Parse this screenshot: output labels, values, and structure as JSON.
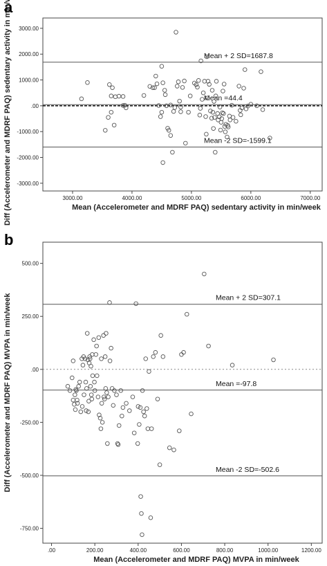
{
  "chart_data": [
    {
      "panel_label": "a",
      "type": "scatter",
      "xlabel": "Mean (Accelerometer and MDRF PAQ) sedentary activity in min/week",
      "ylabel": "Diff (Accelerometer and MDRF PAQ) sedentary activity in min/week",
      "xlim": [
        2500,
        7200
      ],
      "ylim": [
        -3300,
        3400
      ],
      "x_ticks": [
        3000,
        4000,
        5000,
        6000,
        7000
      ],
      "x_tick_labels": [
        "3000.00",
        "4000.00",
        "5000.00",
        "6000.00",
        "7000.00"
      ],
      "y_ticks": [
        3000,
        2000,
        1000,
        0,
        -1000,
        -2000,
        -3000
      ],
      "y_tick_labels": [
        "3000.00",
        "2000.00",
        "1000.00",
        ".00",
        "-1000.00",
        "-2000.00",
        "-3000.00"
      ],
      "grid": false,
      "reference_lines": [
        {
          "label": "Mean + 2 SD=1687.8",
          "value": 1687.8,
          "style": "solid"
        },
        {
          "label": "Mean =44.4",
          "value": 44.4,
          "style": "solid"
        },
        {
          "label": "",
          "value": 0,
          "style": "dashed"
        },
        {
          "label": "Mean -2 SD=-1599.1",
          "value": -1599.1,
          "style": "solid"
        }
      ],
      "points": [
        [
          3150,
          270
        ],
        [
          3250,
          900
        ],
        [
          3550,
          -950
        ],
        [
          3600,
          -450
        ],
        [
          3620,
          820
        ],
        [
          3650,
          -250
        ],
        [
          3650,
          380
        ],
        [
          3670,
          700
        ],
        [
          3700,
          -750
        ],
        [
          3720,
          350
        ],
        [
          3780,
          370
        ],
        [
          3850,
          360
        ],
        [
          3850,
          10
        ],
        [
          3880,
          20
        ],
        [
          3900,
          -80
        ],
        [
          4200,
          400
        ],
        [
          4300,
          750
        ],
        [
          4350,
          700
        ],
        [
          4380,
          700
        ],
        [
          4400,
          1150
        ],
        [
          4420,
          850
        ],
        [
          4450,
          10
        ],
        [
          4500,
          -250
        ],
        [
          4480,
          -420
        ],
        [
          4500,
          1530
        ],
        [
          4520,
          890
        ],
        [
          4520,
          -2200
        ],
        [
          4550,
          600
        ],
        [
          4560,
          430
        ],
        [
          4580,
          0
        ],
        [
          4600,
          -870
        ],
        [
          4620,
          -950
        ],
        [
          4650,
          30
        ],
        [
          4650,
          -1150
        ],
        [
          4680,
          -1800
        ],
        [
          4700,
          -220
        ],
        [
          4720,
          -70
        ],
        [
          4740,
          2850
        ],
        [
          4760,
          760
        ],
        [
          4780,
          930
        ],
        [
          4800,
          180
        ],
        [
          4820,
          -50
        ],
        [
          4820,
          -230
        ],
        [
          4850,
          710
        ],
        [
          4880,
          960
        ],
        [
          4900,
          -1450
        ],
        [
          4950,
          -250
        ],
        [
          4980,
          380
        ],
        [
          5050,
          880
        ],
        [
          5080,
          820
        ],
        [
          5100,
          720
        ],
        [
          5120,
          980
        ],
        [
          5140,
          -360
        ],
        [
          5150,
          -100
        ],
        [
          5160,
          1740
        ],
        [
          5180,
          250
        ],
        [
          5200,
          500
        ],
        [
          5220,
          950
        ],
        [
          5240,
          -420
        ],
        [
          5250,
          -1100
        ],
        [
          5260,
          1900
        ],
        [
          5270,
          300
        ],
        [
          5280,
          950
        ],
        [
          5300,
          830
        ],
        [
          5320,
          -200
        ],
        [
          5340,
          -480
        ],
        [
          5350,
          600
        ],
        [
          5360,
          -250
        ],
        [
          5370,
          -880
        ],
        [
          5380,
          170
        ],
        [
          5390,
          -450
        ],
        [
          5400,
          -1800
        ],
        [
          5410,
          380
        ],
        [
          5420,
          950
        ],
        [
          5440,
          -300
        ],
        [
          5450,
          -550
        ],
        [
          5470,
          -430
        ],
        [
          5480,
          -50
        ],
        [
          5490,
          -940
        ],
        [
          5500,
          -640
        ],
        [
          5510,
          -500
        ],
        [
          5520,
          -270
        ],
        [
          5530,
          570
        ],
        [
          5540,
          -300
        ],
        [
          5550,
          840
        ],
        [
          5560,
          -800
        ],
        [
          5570,
          -1010
        ],
        [
          5580,
          -720
        ],
        [
          5600,
          -1210
        ],
        [
          5610,
          -760
        ],
        [
          5620,
          -820
        ],
        [
          5640,
          -400
        ],
        [
          5650,
          -550
        ],
        [
          5680,
          20
        ],
        [
          5700,
          -450
        ],
        [
          5750,
          -600
        ],
        [
          5800,
          760
        ],
        [
          5820,
          -180
        ],
        [
          5830,
          -350
        ],
        [
          5850,
          -80
        ],
        [
          5880,
          680
        ],
        [
          5900,
          1400
        ],
        [
          5920,
          -120
        ],
        [
          5950,
          -10
        ],
        [
          6000,
          60
        ],
        [
          6100,
          0
        ],
        [
          6170,
          1320
        ],
        [
          6200,
          -150
        ],
        [
          6320,
          -1250
        ]
      ]
    },
    {
      "panel_label": "b",
      "type": "scatter",
      "xlabel": "Mean (Accelerometer and MDRF PAQ) MVPA  in min/week",
      "ylabel": "Diff (Accelerometer and MDRF PAQ) MVPA  in min/week",
      "xlim": [
        -40,
        1250
      ],
      "ylim": [
        -820,
        600
      ],
      "x_ticks": [
        0,
        200,
        400,
        600,
        800,
        1000,
        1200
      ],
      "x_tick_labels": [
        ".00",
        "200.00",
        "400.00",
        "600.00",
        "800.00",
        "1000.00",
        "1200.00"
      ],
      "y_ticks": [
        500,
        250,
        0,
        -250,
        -500,
        -750
      ],
      "y_tick_labels": [
        "500.00",
        "250.00",
        ".00",
        "-250.00",
        "-500.00",
        "-750.00"
      ],
      "grid": false,
      "reference_lines": [
        {
          "label": "Mean + 2 SD=307.1",
          "value": 307.1,
          "style": "solid"
        },
        {
          "label": "",
          "value": 0,
          "style": "dotted"
        },
        {
          "label": "Mean =-97.8",
          "value": -97.8,
          "style": "solid"
        },
        {
          "label": "Mean -2 SD=-502.6",
          "value": -502.6,
          "style": "solid"
        }
      ],
      "points": [
        [
          75,
          -80
        ],
        [
          85,
          -100
        ],
        [
          95,
          -40
        ],
        [
          100,
          40
        ],
        [
          100,
          -145
        ],
        [
          105,
          -165
        ],
        [
          108,
          -120
        ],
        [
          110,
          -190
        ],
        [
          112,
          -95
        ],
        [
          115,
          -100
        ],
        [
          118,
          -145
        ],
        [
          120,
          -160
        ],
        [
          125,
          -80
        ],
        [
          130,
          -60
        ],
        [
          135,
          -200
        ],
        [
          140,
          50
        ],
        [
          142,
          -175
        ],
        [
          145,
          20
        ],
        [
          148,
          60
        ],
        [
          150,
          -120
        ],
        [
          155,
          50
        ],
        [
          158,
          -60
        ],
        [
          160,
          -195
        ],
        [
          162,
          -90
        ],
        [
          165,
          170
        ],
        [
          168,
          45
        ],
        [
          170,
          -200
        ],
        [
          172,
          -150
        ],
        [
          174,
          30
        ],
        [
          176,
          60
        ],
        [
          178,
          50
        ],
        [
          180,
          -80
        ],
        [
          182,
          15
        ],
        [
          184,
          -120
        ],
        [
          186,
          -140
        ],
        [
          188,
          70
        ],
        [
          190,
          -30
        ],
        [
          195,
          140
        ],
        [
          198,
          -60
        ],
        [
          200,
          -100
        ],
        [
          205,
          70
        ],
        [
          208,
          110
        ],
        [
          210,
          -30
        ],
        [
          215,
          -130
        ],
        [
          218,
          150
        ],
        [
          220,
          -215
        ],
        [
          225,
          -230
        ],
        [
          228,
          -280
        ],
        [
          230,
          50
        ],
        [
          232,
          -160
        ],
        [
          235,
          -250
        ],
        [
          240,
          160
        ],
        [
          242,
          -130
        ],
        [
          245,
          -140
        ],
        [
          248,
          60
        ],
        [
          250,
          -90
        ],
        [
          252,
          170
        ],
        [
          255,
          -110
        ],
        [
          258,
          -350
        ],
        [
          262,
          -130
        ],
        [
          268,
          315
        ],
        [
          270,
          40
        ],
        [
          275,
          100
        ],
        [
          280,
          -90
        ],
        [
          285,
          -170
        ],
        [
          290,
          -100
        ],
        [
          300,
          -120
        ],
        [
          305,
          -350
        ],
        [
          308,
          -355
        ],
        [
          312,
          -265
        ],
        [
          320,
          -100
        ],
        [
          325,
          -220
        ],
        [
          330,
          -180
        ],
        [
          345,
          -160
        ],
        [
          360,
          -195
        ],
        [
          375,
          -130
        ],
        [
          382,
          -300
        ],
        [
          390,
          310
        ],
        [
          398,
          -350
        ],
        [
          400,
          -175
        ],
        [
          405,
          -260
        ],
        [
          410,
          -180
        ],
        [
          412,
          -600
        ],
        [
          415,
          -680
        ],
        [
          418,
          -780
        ],
        [
          420,
          -100
        ],
        [
          425,
          -200
        ],
        [
          430,
          -220
        ],
        [
          435,
          50
        ],
        [
          440,
          -185
        ],
        [
          445,
          -280
        ],
        [
          450,
          -10
        ],
        [
          458,
          -700
        ],
        [
          462,
          -280
        ],
        [
          470,
          60
        ],
        [
          480,
          80
        ],
        [
          490,
          -140
        ],
        [
          500,
          -450
        ],
        [
          505,
          160
        ],
        [
          515,
          60
        ],
        [
          545,
          -370
        ],
        [
          565,
          -380
        ],
        [
          590,
          -290
        ],
        [
          600,
          70
        ],
        [
          610,
          80
        ],
        [
          625,
          260
        ],
        [
          645,
          -210
        ],
        [
          705,
          450
        ],
        [
          725,
          110
        ],
        [
          835,
          20
        ],
        [
          1025,
          45
        ]
      ]
    }
  ]
}
